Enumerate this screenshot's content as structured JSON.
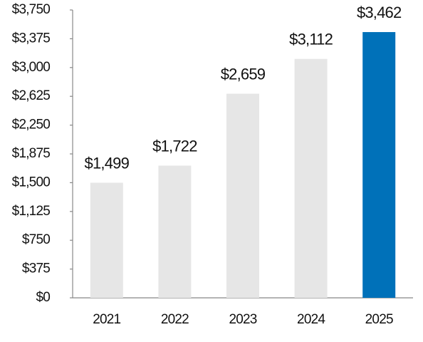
{
  "chart_data": {
    "type": "bar",
    "categories": [
      "2021",
      "2022",
      "2023",
      "2024",
      "2025"
    ],
    "values": [
      1499,
      1722,
      2659,
      3112,
      3462
    ],
    "value_labels": [
      "$1,499",
      "$1,722",
      "$2,659",
      "$3,112",
      "$3,462"
    ],
    "colors": [
      "#e6e6e6",
      "#e6e6e6",
      "#e6e6e6",
      "#e6e6e6",
      "#0071b9"
    ],
    "ylim": [
      0,
      3750
    ],
    "yticks": [
      {
        "value": 0,
        "label": "$0"
      },
      {
        "value": 375,
        "label": "$375"
      },
      {
        "value": 750,
        "label": "$750"
      },
      {
        "value": 1125,
        "label": "$1,125"
      },
      {
        "value": 1500,
        "label": "$1,500"
      },
      {
        "value": 1875,
        "label": "$1,875"
      },
      {
        "value": 2250,
        "label": "$2,250"
      },
      {
        "value": 2625,
        "label": "$2,625"
      },
      {
        "value": 3000,
        "label": "$3,000"
      },
      {
        "value": 3375,
        "label": "$3,375"
      },
      {
        "value": 3750,
        "label": "$3,750"
      }
    ],
    "grid": false
  }
}
